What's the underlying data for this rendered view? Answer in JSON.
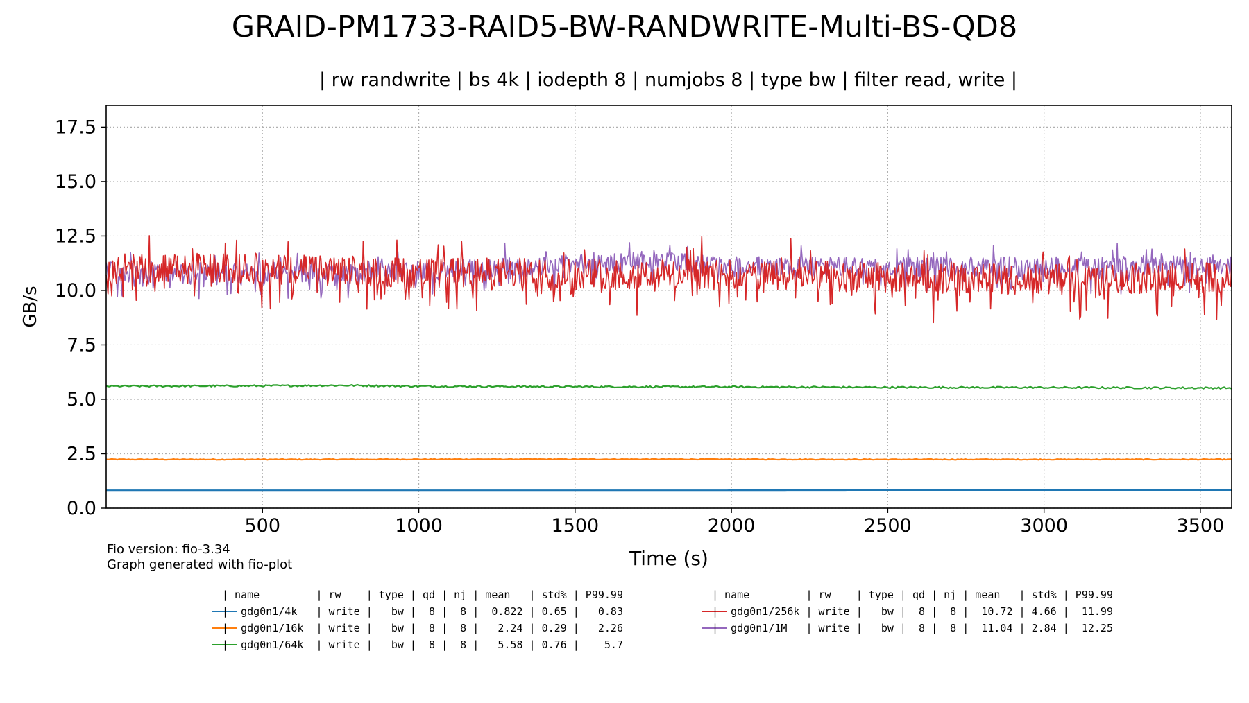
{
  "chart_data": {
    "type": "line",
    "title": "GRAID-PM1733-RAID5-BW-RANDWRITE-Multi-BS-QD8",
    "subtitle": "| rw randwrite | bs 4k | iodepth 8 | numjobs 8 | type bw | filter read, write |",
    "xlabel": "Time (s)",
    "ylabel": "GB/s",
    "xlim": [
      0,
      3600
    ],
    "ylim": [
      0,
      18.5
    ],
    "xticks": [
      500,
      1000,
      1500,
      2000,
      2500,
      3000,
      3500
    ],
    "xtick_labels": [
      "500",
      "1000",
      "1500",
      "2000",
      "2500",
      "3000",
      "3500"
    ],
    "yticks": [
      0,
      2.5,
      5,
      7.5,
      10,
      12.5,
      15,
      17.5
    ],
    "ytick_labels": [
      "0.0",
      "2.5",
      "5.0",
      "7.5",
      "10.0",
      "12.5",
      "15.0",
      "17.5"
    ],
    "grid": true,
    "legend_placement": "below",
    "series": [
      {
        "name": "gdg0n1/4k",
        "color": "#1f77b4",
        "values": [
          [
            0,
            0.82
          ],
          [
            600,
            0.82
          ],
          [
            1200,
            0.82
          ],
          [
            1800,
            0.82
          ],
          [
            2400,
            0.83
          ],
          [
            3000,
            0.83
          ],
          [
            3600,
            0.83
          ]
        ],
        "noise": 0.0
      },
      {
        "name": "gdg0n1/16k",
        "color": "#ff7f0e",
        "values": [
          [
            0,
            2.24
          ],
          [
            600,
            2.24
          ],
          [
            1200,
            2.25
          ],
          [
            1800,
            2.25
          ],
          [
            2400,
            2.24
          ],
          [
            3000,
            2.24
          ],
          [
            3600,
            2.24
          ]
        ],
        "noise": 0.02
      },
      {
        "name": "gdg0n1/64k",
        "color": "#2ca02c",
        "values": [
          [
            0,
            5.6
          ],
          [
            500,
            5.62
          ],
          [
            760,
            5.64
          ],
          [
            1000,
            5.6
          ],
          [
            1500,
            5.58
          ],
          [
            2000,
            5.57
          ],
          [
            2500,
            5.55
          ],
          [
            3000,
            5.54
          ],
          [
            3600,
            5.52
          ]
        ],
        "noise": 0.04
      },
      {
        "name": "gdg0n1/1M",
        "color": "#9467bd",
        "values": [
          [
            0,
            10.9
          ],
          [
            500,
            10.8
          ],
          [
            1000,
            10.9
          ],
          [
            1500,
            11.2
          ],
          [
            1750,
            11.4
          ],
          [
            2000,
            11.1
          ],
          [
            2500,
            11.1
          ],
          [
            3000,
            11.1
          ],
          [
            3600,
            11.2
          ]
        ],
        "noise": 0.45
      },
      {
        "name": "gdg0n1/256k",
        "color": "#d62728",
        "values": [
          [
            0,
            11.0
          ],
          [
            500,
            11.0
          ],
          [
            1000,
            10.8
          ],
          [
            1500,
            10.8
          ],
          [
            2000,
            10.7
          ],
          [
            2500,
            10.6
          ],
          [
            3000,
            10.5
          ],
          [
            3600,
            10.6
          ]
        ],
        "noise": 0.7
      }
    ]
  },
  "footnote": {
    "line1": "Fio version: fio-3.34",
    "line2": "Graph generated with fio-plot"
  },
  "legend": {
    "left_header": "| name         | rw    | type | qd | nj | mean   | std% | P99.99",
    "right_header": "| name         | rw    | type | qd | nj | mean   | std% | P99.99",
    "left_rows": [
      {
        "color": "#1f77b4",
        "text": "|  gdg0n1/4k   | write |   bw |  8 |  8 |  0.822 | 0.65 |   0.83"
      },
      {
        "color": "#ff7f0e",
        "text": "|  gdg0n1/16k  | write |   bw |  8 |  8 |   2.24 | 0.29 |   2.26"
      },
      {
        "color": "#2ca02c",
        "text": "|  gdg0n1/64k  | write |   bw |  8 |  8 |   5.58 | 0.76 |    5.7"
      }
    ],
    "right_rows": [
      {
        "color": "#d62728",
        "text": "|  gdg0n1/256k | write |   bw |  8 |  8 |  10.72 | 4.66 |  11.99"
      },
      {
        "color": "#9467bd",
        "text": "|  gdg0n1/1M   | write |   bw |  8 |  8 |  11.04 | 2.84 |  12.25"
      }
    ]
  }
}
